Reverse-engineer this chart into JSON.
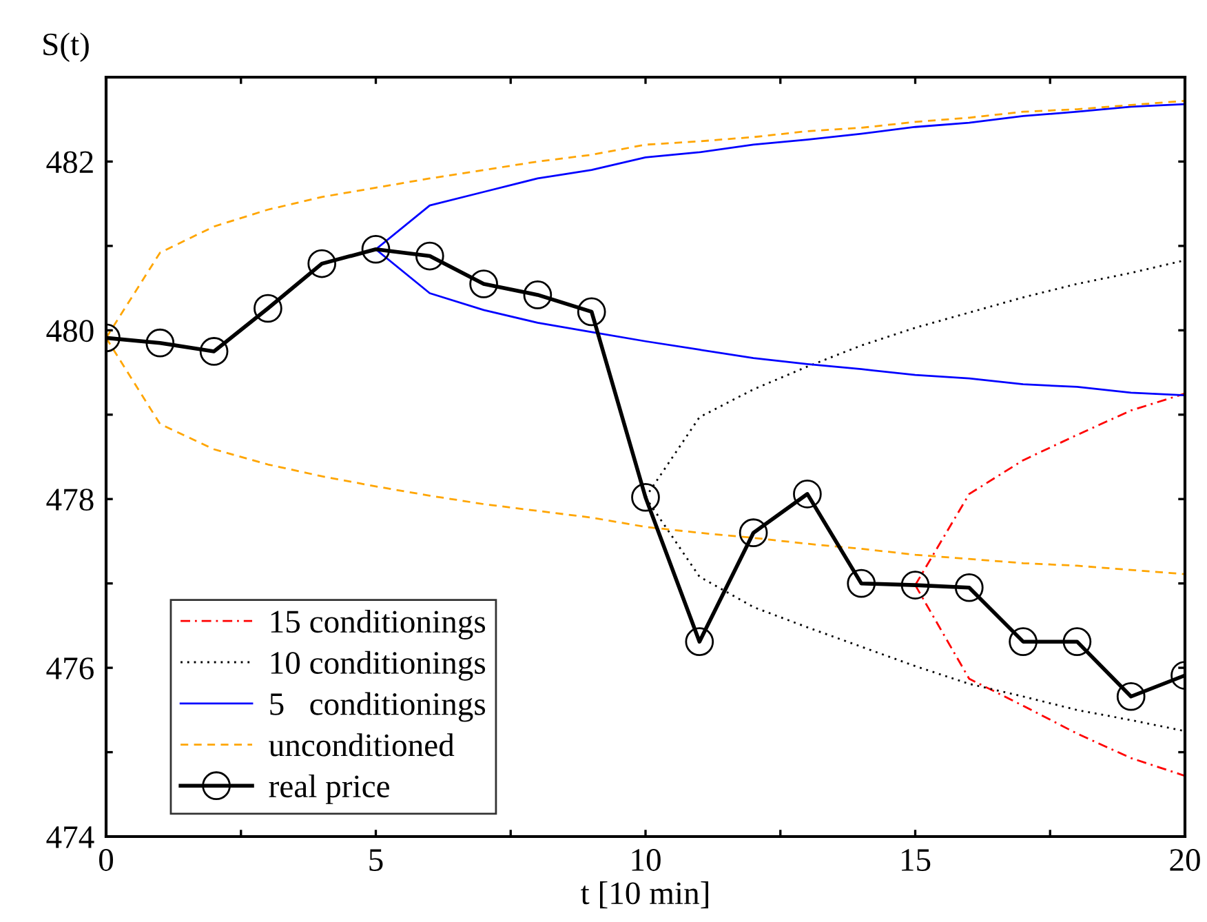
{
  "chart_data": {
    "type": "line",
    "xlabel": "t [10 min]",
    "ylabel": "S(t)",
    "xlim": [
      0,
      20
    ],
    "ylim": [
      474,
      483
    ],
    "xticks": [
      0,
      {
        "value": 2.5,
        "label": null
      },
      5,
      {
        "value": 7.5,
        "label": null
      },
      10,
      {
        "value": 12.5,
        "label": null
      },
      15,
      {
        "value": 17.5,
        "label": null
      },
      20
    ],
    "yticks": [
      474,
      {
        "value": 475,
        "label": null
      },
      476,
      {
        "value": 477,
        "label": null
      },
      478,
      {
        "value": 479,
        "label": null
      },
      480,
      {
        "value": 481,
        "label": null
      },
      482
    ],
    "grid": false,
    "legend": "bottom left",
    "marker": "none",
    "series": [
      {
        "name": "15 conditionings",
        "color": "#ff0000",
        "line_style": "dashdot",
        "x": [
          15,
          16,
          17,
          18,
          19,
          20
        ],
        "values": [
          476.98,
          478.06,
          478.46,
          478.76,
          479.05,
          479.25
        ]
      },
      {
        "color": "#ff0000",
        "line_style": "dashdot",
        "x": [
          15,
          16,
          17,
          18,
          19,
          20
        ],
        "values": [
          476.98,
          475.87,
          475.55,
          475.22,
          474.93,
          474.72
        ]
      },
      {
        "name": "10 conditionings",
        "color": "#000000",
        "line_style": "dotted",
        "x": [
          10,
          11,
          12,
          13,
          14,
          15,
          16,
          17,
          18,
          19,
          20
        ],
        "values": [
          478.02,
          478.97,
          479.3,
          479.57,
          479.82,
          480.03,
          480.21,
          480.39,
          480.55,
          480.68,
          480.83
        ]
      },
      {
        "color": "#000000",
        "line_style": "dotted",
        "x": [
          10,
          11,
          12,
          13,
          14,
          15,
          16,
          17,
          18,
          19,
          20
        ],
        "values": [
          478.02,
          477.08,
          476.72,
          476.48,
          476.25,
          476.02,
          475.81,
          475.66,
          475.5,
          475.38,
          475.25
        ]
      },
      {
        "name": "5   conditionings",
        "color": "#0000ff",
        "line_style": "solid",
        "x": [
          5,
          6,
          7,
          8,
          9,
          10,
          11,
          12,
          13,
          14,
          15,
          16,
          17,
          18,
          19,
          20
        ],
        "values": [
          480.96,
          481.48,
          481.64,
          481.8,
          481.9,
          482.05,
          482.11,
          482.2,
          482.26,
          482.33,
          482.41,
          482.46,
          482.54,
          482.59,
          482.65,
          482.68
        ]
      },
      {
        "color": "#0000ff",
        "line_style": "solid",
        "x": [
          5,
          6,
          7,
          8,
          9,
          10,
          11,
          12,
          13,
          14,
          15,
          16,
          17,
          18,
          19,
          20
        ],
        "values": [
          480.96,
          480.44,
          480.24,
          480.09,
          479.98,
          479.87,
          479.77,
          479.67,
          479.6,
          479.54,
          479.47,
          479.43,
          479.36,
          479.33,
          479.26,
          479.23
        ]
      },
      {
        "name": "unconditioned",
        "color": "#ffa500",
        "line_style": "dashed",
        "x": [
          0,
          1,
          2,
          3,
          4,
          5,
          6,
          7,
          8,
          9,
          10,
          11,
          12,
          13,
          14,
          15,
          16,
          17,
          18,
          19,
          20
        ],
        "values": [
          479.91,
          480.92,
          481.23,
          481.43,
          481.58,
          481.69,
          481.8,
          481.9,
          482.0,
          482.08,
          482.2,
          482.24,
          482.29,
          482.36,
          482.4,
          482.47,
          482.52,
          482.59,
          482.62,
          482.67,
          482.72
        ]
      },
      {
        "color": "#ffa500",
        "line_style": "dashed",
        "x": [
          0,
          1,
          2,
          3,
          4,
          5,
          6,
          7,
          8,
          9,
          10,
          11,
          12,
          13,
          14,
          15,
          16,
          17,
          18,
          19,
          20
        ],
        "values": [
          479.91,
          478.89,
          478.59,
          478.41,
          478.27,
          478.15,
          478.04,
          477.94,
          477.86,
          477.78,
          477.67,
          477.6,
          477.54,
          477.47,
          477.41,
          477.34,
          477.29,
          477.24,
          477.21,
          477.16,
          477.11
        ]
      },
      {
        "name": "real price",
        "color": "#000000",
        "line_style": "solid",
        "marker": "circle",
        "x": [
          0,
          1,
          2,
          3,
          4,
          5,
          6,
          7,
          8,
          9,
          10,
          11,
          12,
          13,
          14,
          15,
          16,
          17,
          18,
          19,
          20
        ],
        "values": [
          479.91,
          479.85,
          479.75,
          480.26,
          480.79,
          480.96,
          480.88,
          480.55,
          480.42,
          480.22,
          478.02,
          476.31,
          477.6,
          478.06,
          477.0,
          476.98,
          476.95,
          476.31,
          476.31,
          475.66,
          475.91
        ]
      }
    ]
  }
}
